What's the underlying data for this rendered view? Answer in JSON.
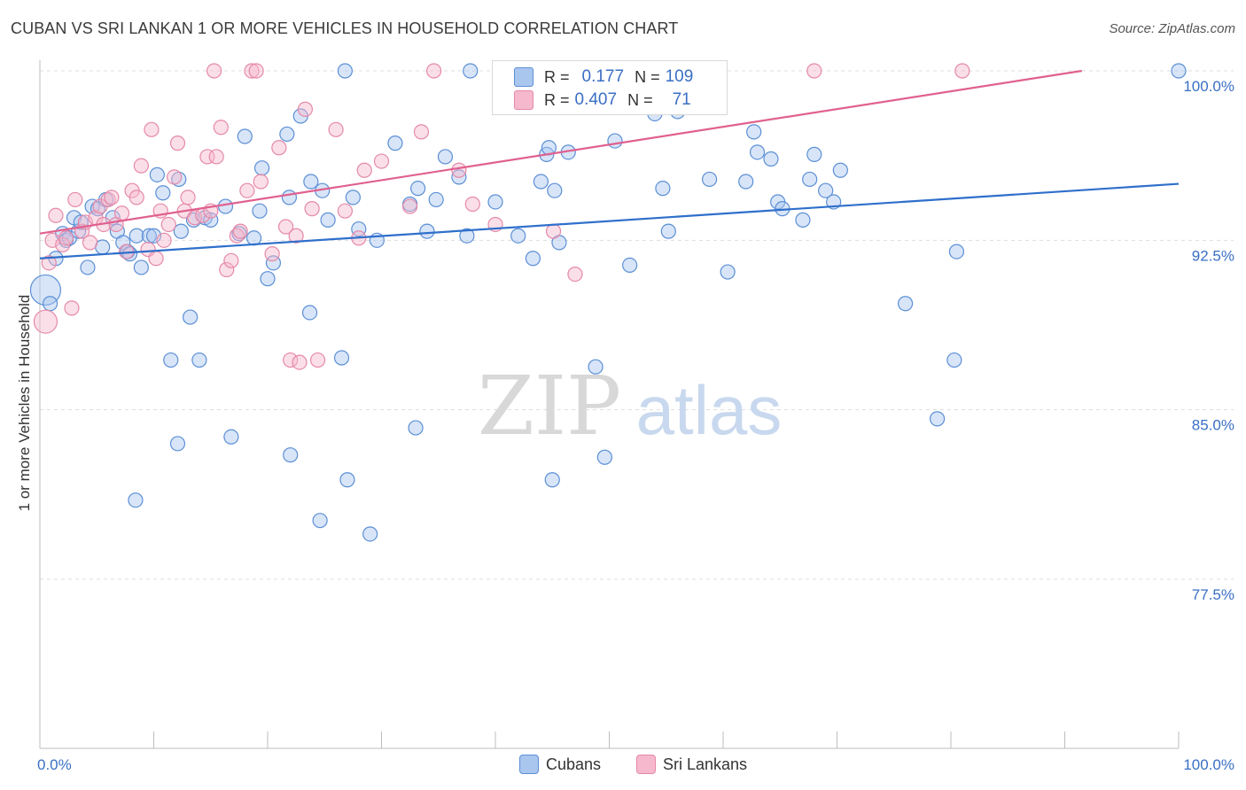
{
  "title": "CUBAN VS SRI LANKAN 1 OR MORE VEHICLES IN HOUSEHOLD CORRELATION CHART",
  "source": "Source: ZipAtlas.com",
  "watermark": {
    "zip": "ZIP",
    "atlas": "atlas"
  },
  "legend_box": {
    "rows": [
      {
        "r_label": "R =",
        "r_value": "0.177",
        "n_label": "N =",
        "n_value": "109"
      },
      {
        "r_label": "R =",
        "r_value": "0.407",
        "n_label": "N =",
        "n_value": "71"
      }
    ]
  },
  "colors": {
    "cubans_fill": "#a9c6ef",
    "cubans_stroke": "#5b8fd6",
    "cubans_line": "#2f6fcb",
    "srilankans_fill": "#f6b8cc",
    "srilankans_stroke": "#e589a8",
    "srilankans_line": "#e0608f",
    "tick_label": "#3a6fc4",
    "grid": "#dddddd"
  },
  "chart_data": {
    "type": "scatter",
    "title": "CUBAN VS SRI LANKAN 1 OR MORE VEHICLES IN HOUSEHOLD CORRELATION CHART",
    "xlabel": "",
    "ylabel": "1 or more Vehicles in Household",
    "xlim": [
      0,
      100
    ],
    "ylim": [
      70.3,
      101.0
    ],
    "x_tick_labels": [
      "0.0%",
      "100.0%"
    ],
    "y_ticks": [
      77.5,
      85.0,
      92.5,
      100.0
    ],
    "y_tick_labels": [
      "77.5%",
      "85.0%",
      "92.5%",
      "100.0%"
    ],
    "grid": true,
    "legend": "top-center",
    "series": [
      {
        "name": "Cubans",
        "r": 0.177,
        "n": 109,
        "trend": [
          [
            0,
            91.7
          ],
          [
            100,
            95.0
          ]
        ],
        "points": [
          [
            0.5,
            90.3
          ],
          [
            0.9,
            89.7
          ],
          [
            1.4,
            91.7
          ],
          [
            2.0,
            92.8
          ],
          [
            2.3,
            92.5
          ],
          [
            2.6,
            92.6
          ],
          [
            3.0,
            93.5
          ],
          [
            3.4,
            92.9
          ],
          [
            3.6,
            93.3
          ],
          [
            4.2,
            91.3
          ],
          [
            4.6,
            94.0
          ],
          [
            5.1,
            93.9
          ],
          [
            5.5,
            92.2
          ],
          [
            5.8,
            94.3
          ],
          [
            6.4,
            93.5
          ],
          [
            6.8,
            92.9
          ],
          [
            7.3,
            92.4
          ],
          [
            7.7,
            92.0
          ],
          [
            8.5,
            92.7
          ],
          [
            8.9,
            91.3
          ],
          [
            9.6,
            92.7
          ],
          [
            10.0,
            92.7
          ],
          [
            10.3,
            95.4
          ],
          [
            10.8,
            94.6
          ],
          [
            12.2,
            95.2
          ],
          [
            12.4,
            92.9
          ],
          [
            13.5,
            93.4
          ],
          [
            14.5,
            93.5
          ],
          [
            15.0,
            93.4
          ],
          [
            16.3,
            94.0
          ],
          [
            17.5,
            92.8
          ],
          [
            18.0,
            97.1
          ],
          [
            18.8,
            92.6
          ],
          [
            19.3,
            93.8
          ],
          [
            19.5,
            95.7
          ],
          [
            20.0,
            90.8
          ],
          [
            20.5,
            91.5
          ],
          [
            21.7,
            97.2
          ],
          [
            21.9,
            94.4
          ],
          [
            22.9,
            98.0
          ],
          [
            23.8,
            95.1
          ],
          [
            24.8,
            94.7
          ],
          [
            25.3,
            93.4
          ],
          [
            26.8,
            100.0
          ],
          [
            27.5,
            94.4
          ],
          [
            28.0,
            93.0
          ],
          [
            29.6,
            92.5
          ],
          [
            31.2,
            96.8
          ],
          [
            32.5,
            94.1
          ],
          [
            33.2,
            94.8
          ],
          [
            34.0,
            92.9
          ],
          [
            34.8,
            94.3
          ],
          [
            35.6,
            96.2
          ],
          [
            36.8,
            95.3
          ],
          [
            37.5,
            92.7
          ],
          [
            37.8,
            100.0
          ],
          [
            40.0,
            94.2
          ],
          [
            42.0,
            92.7
          ],
          [
            43.3,
            91.7
          ],
          [
            44.0,
            95.1
          ],
          [
            44.5,
            96.3
          ],
          [
            44.7,
            96.6
          ],
          [
            45.2,
            94.7
          ],
          [
            45.6,
            92.4
          ],
          [
            46.4,
            96.4
          ],
          [
            50.5,
            96.9
          ],
          [
            51.8,
            91.4
          ],
          [
            53.0,
            99.3
          ],
          [
            54.0,
            98.1
          ],
          [
            54.7,
            94.8
          ],
          [
            55.2,
            92.9
          ],
          [
            56.0,
            98.2
          ],
          [
            58.8,
            95.2
          ],
          [
            60.4,
            91.1
          ],
          [
            62.0,
            95.1
          ],
          [
            62.7,
            97.3
          ],
          [
            63.0,
            96.4
          ],
          [
            64.2,
            96.1
          ],
          [
            64.8,
            94.2
          ],
          [
            65.2,
            93.9
          ],
          [
            67.0,
            93.4
          ],
          [
            67.6,
            95.2
          ],
          [
            68.0,
            96.3
          ],
          [
            69.0,
            94.7
          ],
          [
            69.7,
            94.2
          ],
          [
            70.3,
            95.6
          ],
          [
            76.0,
            89.7
          ],
          [
            80.5,
            92.0
          ],
          [
            100.0,
            100.0
          ],
          [
            8.4,
            81.0
          ],
          [
            11.5,
            87.2
          ],
          [
            12.1,
            83.5
          ],
          [
            13.2,
            89.1
          ],
          [
            14.0,
            87.2
          ],
          [
            16.8,
            83.8
          ],
          [
            22.0,
            83.0
          ],
          [
            23.7,
            89.3
          ],
          [
            24.6,
            80.1
          ],
          [
            26.5,
            87.3
          ],
          [
            27.0,
            81.9
          ],
          [
            29.0,
            79.5
          ],
          [
            33.0,
            84.2
          ],
          [
            45.0,
            81.9
          ],
          [
            48.8,
            86.9
          ],
          [
            49.6,
            82.9
          ],
          [
            78.8,
            84.6
          ],
          [
            80.3,
            87.2
          ],
          [
            7.9,
            91.9
          ]
        ]
      },
      {
        "name": "Sri Lankans",
        "r": 0.407,
        "n": 71,
        "trend": [
          [
            0,
            92.8
          ],
          [
            91.5,
            100.0
          ]
        ],
        "points": [
          [
            0.5,
            88.9
          ],
          [
            0.8,
            91.5
          ],
          [
            1.1,
            92.5
          ],
          [
            1.4,
            93.6
          ],
          [
            2.0,
            92.3
          ],
          [
            2.3,
            92.6
          ],
          [
            2.8,
            89.5
          ],
          [
            3.1,
            94.3
          ],
          [
            3.7,
            92.9
          ],
          [
            4.0,
            93.3
          ],
          [
            4.4,
            92.4
          ],
          [
            4.9,
            93.5
          ],
          [
            5.3,
            94.0
          ],
          [
            5.6,
            93.2
          ],
          [
            6.0,
            94.3
          ],
          [
            6.3,
            94.4
          ],
          [
            6.7,
            93.2
          ],
          [
            7.2,
            93.7
          ],
          [
            7.6,
            92.0
          ],
          [
            8.1,
            94.7
          ],
          [
            8.5,
            94.4
          ],
          [
            8.9,
            95.8
          ],
          [
            9.5,
            92.1
          ],
          [
            9.8,
            97.4
          ],
          [
            10.2,
            91.7
          ],
          [
            10.6,
            93.8
          ],
          [
            10.9,
            92.5
          ],
          [
            11.3,
            93.2
          ],
          [
            11.8,
            95.3
          ],
          [
            12.1,
            96.8
          ],
          [
            12.7,
            93.8
          ],
          [
            13.0,
            94.4
          ],
          [
            13.6,
            93.5
          ],
          [
            14.3,
            93.6
          ],
          [
            14.7,
            96.2
          ],
          [
            15.0,
            93.8
          ],
          [
            15.3,
            100.0
          ],
          [
            15.5,
            96.2
          ],
          [
            15.9,
            97.5
          ],
          [
            16.4,
            91.2
          ],
          [
            16.8,
            91.6
          ],
          [
            17.3,
            92.7
          ],
          [
            17.6,
            92.9
          ],
          [
            18.2,
            94.7
          ],
          [
            18.6,
            100.0
          ],
          [
            19.0,
            100.0
          ],
          [
            19.4,
            95.1
          ],
          [
            20.4,
            91.9
          ],
          [
            21.0,
            96.6
          ],
          [
            21.6,
            93.1
          ],
          [
            22.0,
            87.2
          ],
          [
            22.5,
            92.7
          ],
          [
            22.8,
            87.1
          ],
          [
            23.3,
            98.3
          ],
          [
            23.9,
            93.9
          ],
          [
            24.4,
            87.2
          ],
          [
            26.0,
            97.4
          ],
          [
            26.8,
            93.8
          ],
          [
            28.0,
            92.6
          ],
          [
            28.5,
            95.6
          ],
          [
            30.0,
            96.0
          ],
          [
            32.5,
            94.0
          ],
          [
            33.5,
            97.3
          ],
          [
            34.6,
            100.0
          ],
          [
            36.8,
            95.6
          ],
          [
            38.0,
            94.1
          ],
          [
            40.0,
            93.2
          ],
          [
            45.1,
            92.9
          ],
          [
            47.0,
            91.0
          ],
          [
            68.0,
            100.0
          ],
          [
            81.0,
            100.0
          ]
        ]
      }
    ]
  },
  "legend_bottom": [
    "Cubans",
    "Sri Lankans"
  ]
}
